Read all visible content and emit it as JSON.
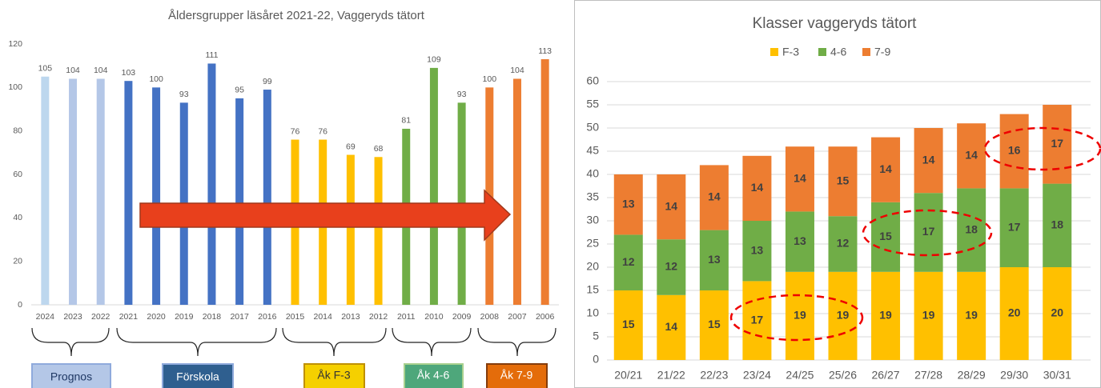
{
  "chart_data": [
    {
      "type": "bar",
      "title": "Åldersgrupper läsåret 2021-22, Vaggeryds tätort",
      "categories": [
        "2024",
        "2023",
        "2022",
        "2021",
        "2020",
        "2019",
        "2018",
        "2017",
        "2016",
        "2015",
        "2014",
        "2013",
        "2012",
        "2011",
        "2010",
        "2009",
        "2008",
        "2007",
        "2006"
      ],
      "values": [
        105,
        104,
        104,
        103,
        100,
        93,
        111,
        95,
        99,
        76,
        76,
        69,
        68,
        81,
        109,
        93,
        100,
        104,
        113
      ],
      "colors": [
        "#bdd7ee",
        "#b4c7e7",
        "#b4c7e7",
        "#4472c4",
        "#4472c4",
        "#4472c4",
        "#4472c4",
        "#4472c4",
        "#4472c4",
        "#ffc000",
        "#ffc000",
        "#ffc000",
        "#ffc000",
        "#70ad47",
        "#70ad47",
        "#70ad47",
        "#ed7d31",
        "#ed7d31",
        "#ed7d31"
      ],
      "ylim": [
        0,
        120
      ],
      "yticks": [
        0,
        20,
        40,
        60,
        80,
        100,
        120
      ],
      "groups": [
        "Prognos",
        "Förskola",
        "Åk F-3",
        "Åk 4-6",
        "Åk 7-9"
      ]
    },
    {
      "type": "stacked_bar",
      "title": "Klasser vaggeryds tätort",
      "categories": [
        "20/21",
        "21/22",
        "22/23",
        "23/24",
        "24/25",
        "25/26",
        "26/27",
        "27/28",
        "28/29",
        "29/30",
        "30/31"
      ],
      "series": [
        {
          "name": "F-3",
          "color": "#ffc000",
          "values": [
            15,
            14,
            15,
            17,
            19,
            19,
            19,
            19,
            19,
            20,
            20
          ]
        },
        {
          "name": "4-6",
          "color": "#70ad47",
          "values": [
            12,
            12,
            13,
            13,
            13,
            12,
            15,
            17,
            18,
            17,
            18
          ]
        },
        {
          "name": "7-9",
          "color": "#ed7d31",
          "values": [
            13,
            14,
            14,
            14,
            14,
            15,
            14,
            14,
            14,
            16,
            17
          ]
        }
      ],
      "ylim": [
        0,
        60
      ],
      "yticks": [
        0,
        5,
        10,
        15,
        20,
        25,
        30,
        35,
        40,
        45,
        50,
        55,
        60
      ],
      "grid": true,
      "legend": "top"
    }
  ]
}
